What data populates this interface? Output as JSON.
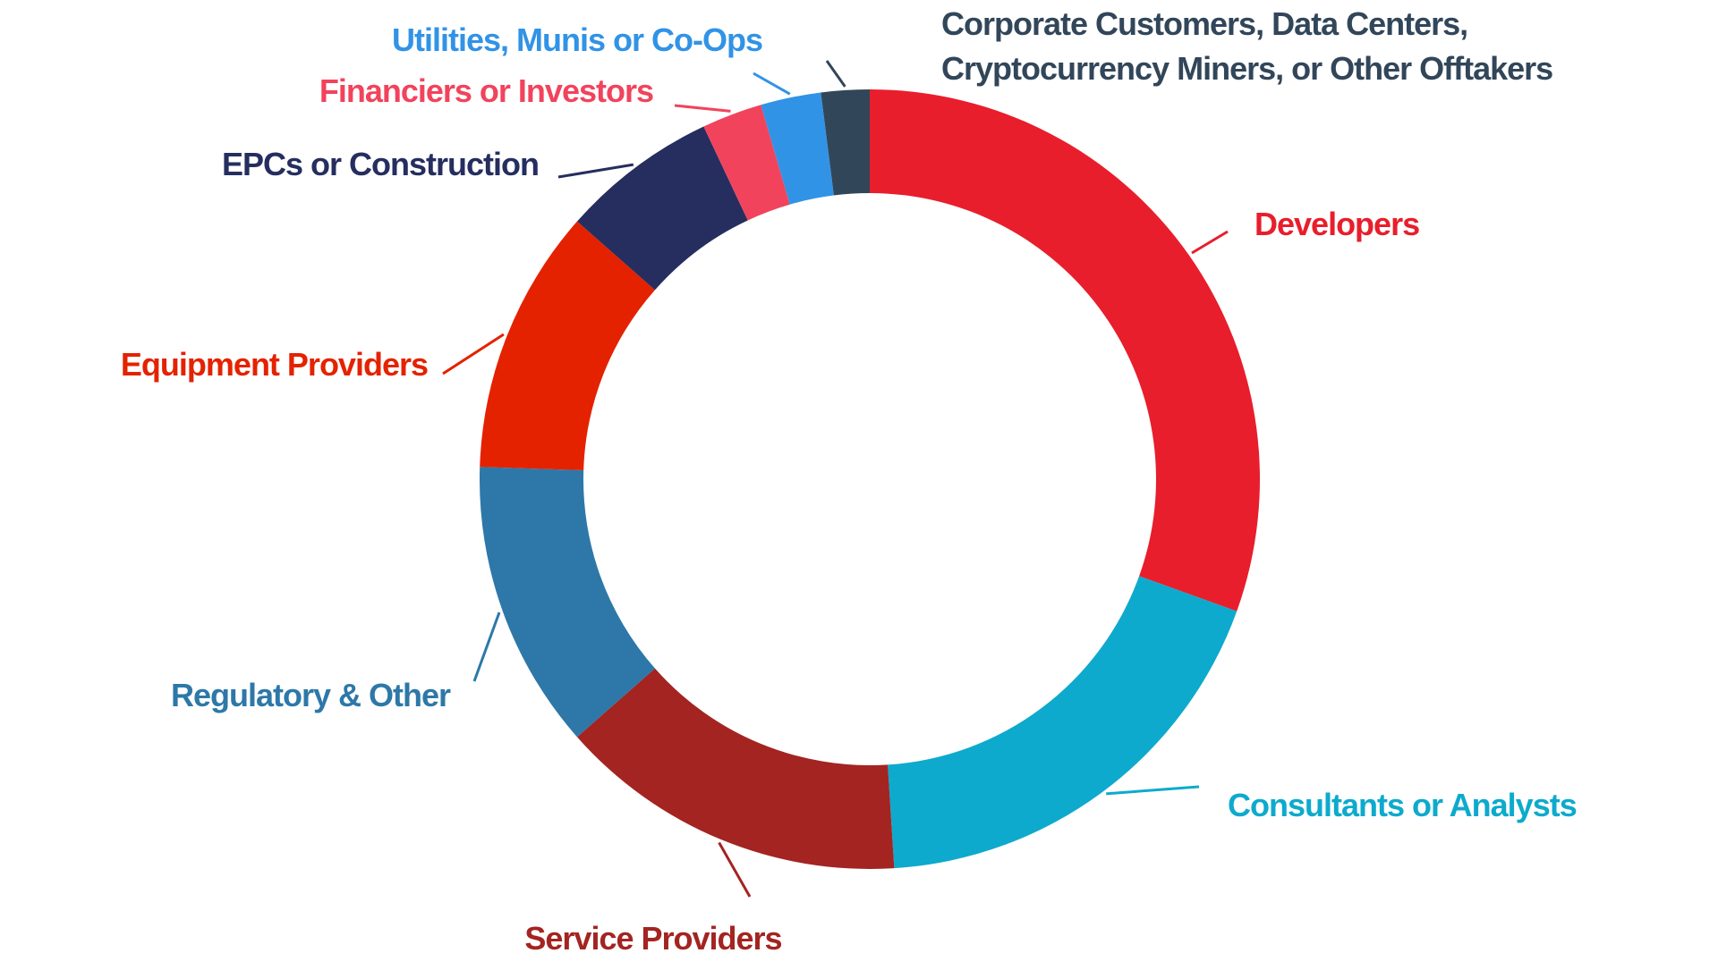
{
  "chart_data": {
    "type": "pie",
    "style": "donut",
    "title": "",
    "legend": "none",
    "unit": "percent",
    "slices": [
      {
        "label": "Developers",
        "label_lines": [
          "Developers"
        ],
        "value": 30.5,
        "color": "#e81e2c"
      },
      {
        "label": "Consultants or Analysts",
        "label_lines": [
          "Consultants or Analysts"
        ],
        "value": 18.5,
        "color": "#0daacd"
      },
      {
        "label": "Service Providers",
        "label_lines": [
          "Service Providers"
        ],
        "value": 14.5,
        "color": "#a32421"
      },
      {
        "label": "Regulatory & Other",
        "label_lines": [
          "Regulatory & Other"
        ],
        "value": 12.0,
        "color": "#2d78a8"
      },
      {
        "label": "Equipment Providers",
        "label_lines": [
          "Equipment Providers"
        ],
        "value": 11.0,
        "color": "#e42200"
      },
      {
        "label": "EPCs or Construction",
        "label_lines": [
          "EPCs or Construction"
        ],
        "value": 6.5,
        "color": "#252e5f"
      },
      {
        "label": "Financiers or Investors",
        "label_lines": [
          "Financiers or Investors"
        ],
        "value": 2.5,
        "color": "#f2435c"
      },
      {
        "label": "Utilities, Munis or Co-Ops",
        "label_lines": [
          "Utilities, Munis or Co-Ops"
        ],
        "value": 2.5,
        "color": "#3193e6"
      },
      {
        "label": "Corporate Customers, Data Centers, Cryptocurrency Miners, or Other Offtakers",
        "label_lines": [
          "Corporate Customers, Data Centers,",
          "Cryptocurrency Miners, or Other Offtakers"
        ],
        "value": 2.0,
        "color": "#32465a"
      }
    ]
  }
}
